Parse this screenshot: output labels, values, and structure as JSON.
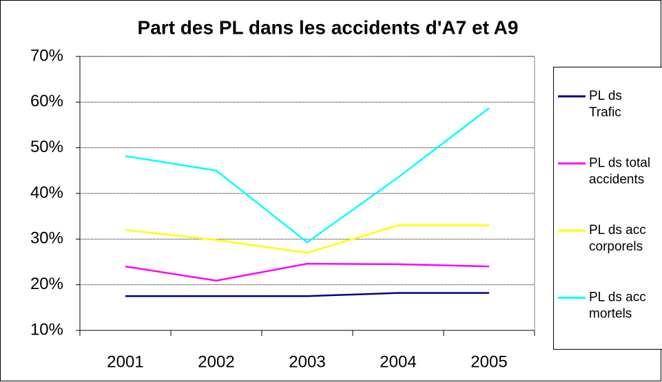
{
  "chart_data": {
    "type": "line",
    "title": "Part des PL dans les accidents d'A7 et A9",
    "categories": [
      "2001",
      "2002",
      "2003",
      "2004",
      "2005"
    ],
    "series": [
      {
        "name": "PL ds Trafic",
        "color": "#000080",
        "values": [
          17.5,
          17.5,
          17.5,
          18.2,
          18.2
        ]
      },
      {
        "name": "PL ds total accidents",
        "color": "#ff00ff",
        "values": [
          24.0,
          20.9,
          24.6,
          24.5,
          24.0
        ]
      },
      {
        "name": "PL ds acc corporels",
        "color": "#ffff00",
        "values": [
          32.0,
          29.8,
          27.0,
          33.0,
          33.0
        ]
      },
      {
        "name": "PL ds acc mortels",
        "color": "#00ffff",
        "values": [
          48.2,
          45.0,
          29.3,
          43.5,
          58.7
        ]
      }
    ],
    "ylim": [
      10,
      70
    ],
    "yticks": [
      {
        "value": 10,
        "label": "10%"
      },
      {
        "value": 20,
        "label": "20%"
      },
      {
        "value": 30,
        "label": "30%"
      },
      {
        "value": 40,
        "label": "40%"
      },
      {
        "value": 50,
        "label": "50%"
      },
      {
        "value": 60,
        "label": "60%"
      },
      {
        "value": 70,
        "label": "70%"
      }
    ],
    "grid": true,
    "legend": "right"
  }
}
